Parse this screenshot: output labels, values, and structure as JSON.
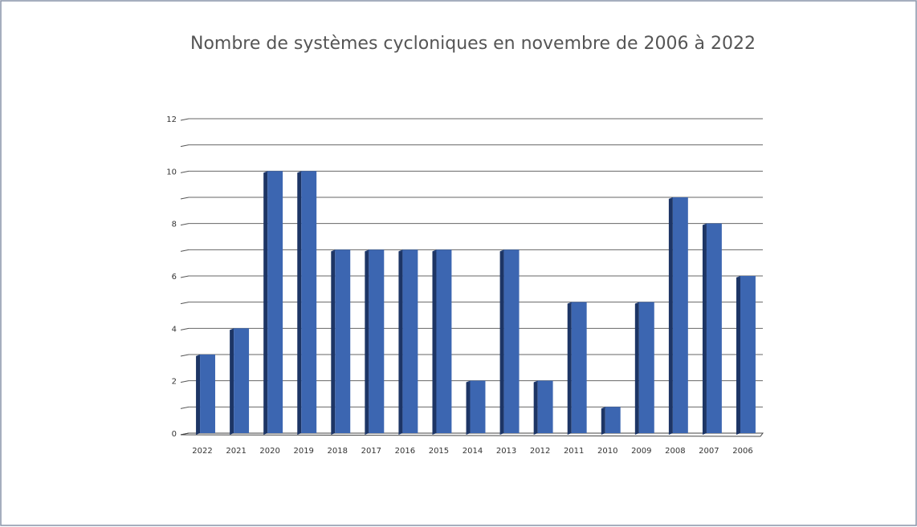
{
  "chart_data": {
    "type": "bar",
    "title": "Nombre de systèmes cycloniques en novembre de 2006 à 2022",
    "categories": [
      "2022",
      "2021",
      "2020",
      "2019",
      "2018",
      "2017",
      "2016",
      "2015",
      "2014",
      "2013",
      "2012",
      "2011",
      "2010",
      "2009",
      "2008",
      "2007",
      "2006"
    ],
    "values": [
      3,
      4,
      10,
      10,
      7,
      7,
      7,
      7,
      2,
      7,
      2,
      5,
      1,
      5,
      9,
      8,
      6
    ],
    "color": "#3c66b1",
    "ylim": [
      0,
      12
    ],
    "yticks": [
      0,
      2,
      4,
      6,
      8,
      10,
      12
    ],
    "yminor": [
      1,
      3,
      5,
      7,
      9,
      11
    ],
    "grid": true
  }
}
